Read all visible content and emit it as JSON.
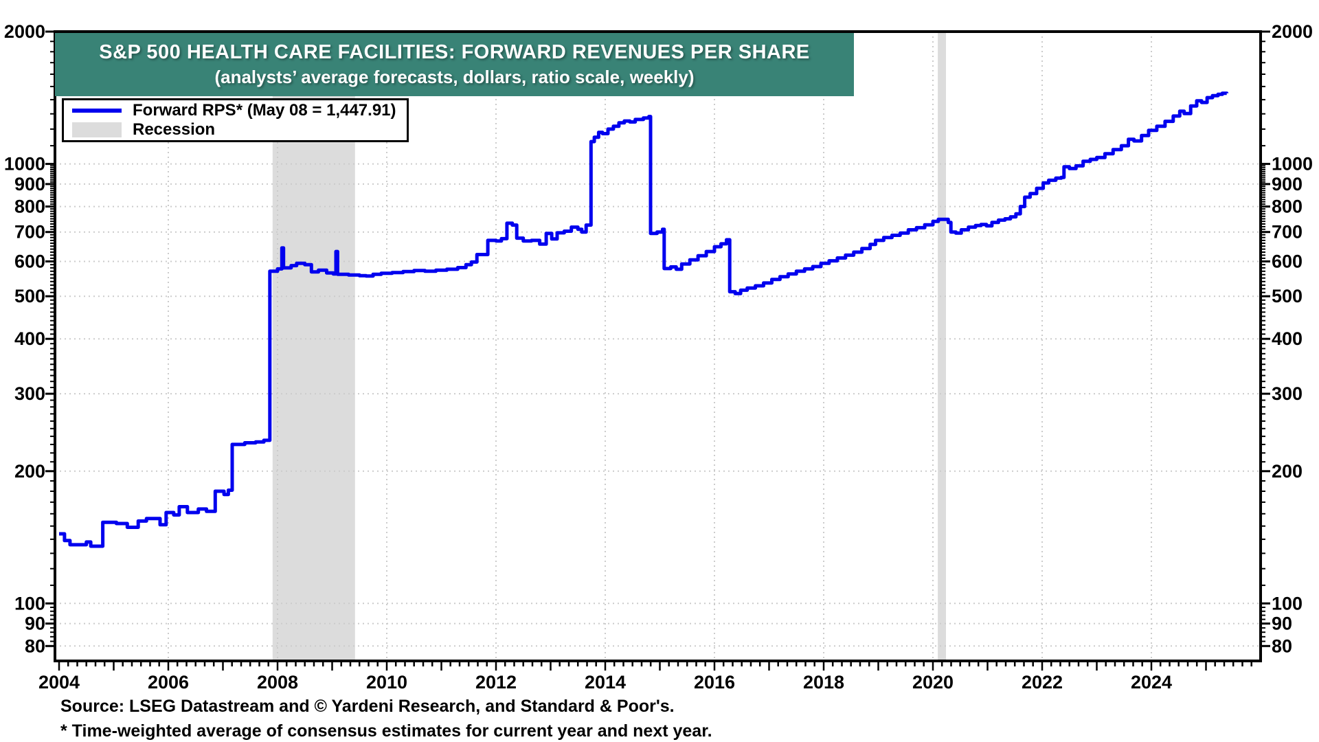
{
  "banner": {
    "title": "S&P 500 HEALTH CARE FACILITIES: FORWARD REVENUES PER SHARE",
    "subtitle": "(analysts’ average forecasts, dollars, ratio scale, weekly)",
    "bg_color": "#398376",
    "text_color": "#FFFFFF"
  },
  "legend": {
    "items": [
      {
        "label": "Forward RPS* (May 08 = 1,447.91)",
        "swatch": "line",
        "color": "#0000EE"
      },
      {
        "label": "Recession",
        "swatch": "box",
        "color": "#DCDCDC"
      }
    ]
  },
  "footer": {
    "source": "Source: LSEG Datastream and © Yardeni Research, and Standard & Poor's.",
    "footnote": "* Time-weighted average of consensus estimates for current year and next year."
  },
  "colors": {
    "line": "#0000EE",
    "recession_band": "#DCDCDC",
    "gridline": "#CBCBCB",
    "axis": "#000000",
    "banner_bg": "#398376"
  },
  "chart_data": {
    "type": "line",
    "title": "S&P 500 HEALTH CARE FACILITIES: FORWARD REVENUES PER SHARE",
    "subtitle": "(analysts’ average forecasts, dollars, ratio scale, weekly)",
    "y_scale": "log",
    "x_unit": "year (weekly data)",
    "x_domain": [
      2003.925,
      2026.0
    ],
    "y_domain": [
      74,
      2000
    ],
    "x_labeled_ticks": [
      2004,
      2006,
      2008,
      2010,
      2012,
      2014,
      2016,
      2018,
      2020,
      2022,
      2024
    ],
    "x_year_ticks": [
      2004,
      2005,
      2006,
      2007,
      2008,
      2009,
      2010,
      2011,
      2012,
      2013,
      2014,
      2015,
      2016,
      2017,
      2018,
      2019,
      2020,
      2021,
      2022,
      2023,
      2024,
      2025
    ],
    "x_minor_ticks_per_year": 6,
    "y_ticks": [
      80,
      90,
      100,
      200,
      300,
      400,
      500,
      600,
      700,
      800,
      900,
      1000,
      2000
    ],
    "gridline_years": [
      2006,
      2008,
      2010,
      2012,
      2014,
      2016,
      2018,
      2020,
      2022,
      2024
    ],
    "gridline_values": [
      80,
      90,
      100,
      200,
      300,
      400,
      500,
      600,
      700,
      800,
      900,
      1000
    ],
    "legend_position": "top-left",
    "recession_bands": [
      [
        2007.91,
        2009.42
      ],
      [
        2020.09,
        2020.24
      ]
    ],
    "series": [
      {
        "name": "Forward RPS* (May 08 = 1,447.91)",
        "color": "#0000EE",
        "latest_label": "May 08 = 1,447.91",
        "data": [
          [
            2004.0,
            144
          ],
          [
            2004.1,
            139
          ],
          [
            2004.2,
            136
          ],
          [
            2004.5,
            138
          ],
          [
            2004.58,
            135
          ],
          [
            2004.8,
            153
          ],
          [
            2005.05,
            152
          ],
          [
            2005.25,
            149
          ],
          [
            2005.45,
            154
          ],
          [
            2005.6,
            156
          ],
          [
            2005.85,
            151
          ],
          [
            2005.96,
            161
          ],
          [
            2006.1,
            159
          ],
          [
            2006.2,
            166
          ],
          [
            2006.35,
            161
          ],
          [
            2006.55,
            164
          ],
          [
            2006.7,
            162
          ],
          [
            2006.86,
            180
          ],
          [
            2007.02,
            177
          ],
          [
            2007.1,
            181
          ],
          [
            2007.17,
            230
          ],
          [
            2007.4,
            232
          ],
          [
            2007.6,
            233
          ],
          [
            2007.75,
            235
          ],
          [
            2007.86,
            570
          ],
          [
            2008.0,
            577
          ],
          [
            2008.08,
            644
          ],
          [
            2008.11,
            580
          ],
          [
            2008.25,
            587
          ],
          [
            2008.35,
            594
          ],
          [
            2008.5,
            590
          ],
          [
            2008.62,
            568
          ],
          [
            2008.75,
            573
          ],
          [
            2008.9,
            565
          ],
          [
            2009.02,
            562
          ],
          [
            2009.07,
            632
          ],
          [
            2009.1,
            561
          ],
          [
            2009.3,
            559
          ],
          [
            2009.5,
            557
          ],
          [
            2009.62,
            556
          ],
          [
            2009.75,
            561
          ],
          [
            2009.9,
            564
          ],
          [
            2010.1,
            566
          ],
          [
            2010.3,
            569
          ],
          [
            2010.5,
            572
          ],
          [
            2010.7,
            570
          ],
          [
            2010.9,
            573
          ],
          [
            2011.1,
            576
          ],
          [
            2011.3,
            581
          ],
          [
            2011.45,
            590
          ],
          [
            2011.55,
            598
          ],
          [
            2011.65,
            622
          ],
          [
            2011.85,
            670
          ],
          [
            2012.0,
            668
          ],
          [
            2012.1,
            676
          ],
          [
            2012.2,
            733
          ],
          [
            2012.3,
            726
          ],
          [
            2012.38,
            678
          ],
          [
            2012.5,
            668
          ],
          [
            2012.65,
            670
          ],
          [
            2012.8,
            657
          ],
          [
            2012.92,
            695
          ],
          [
            2013.02,
            675
          ],
          [
            2013.12,
            697
          ],
          [
            2013.25,
            703
          ],
          [
            2013.38,
            718
          ],
          [
            2013.5,
            710
          ],
          [
            2013.57,
            700
          ],
          [
            2013.65,
            726
          ],
          [
            2013.74,
            1124
          ],
          [
            2013.8,
            1150
          ],
          [
            2013.88,
            1180
          ],
          [
            2013.95,
            1172
          ],
          [
            2014.05,
            1200
          ],
          [
            2014.15,
            1218
          ],
          [
            2014.25,
            1240
          ],
          [
            2014.35,
            1252
          ],
          [
            2014.45,
            1246
          ],
          [
            2014.55,
            1262
          ],
          [
            2014.7,
            1272
          ],
          [
            2014.8,
            1282
          ],
          [
            2014.83,
            695
          ],
          [
            2014.95,
            700
          ],
          [
            2015.05,
            710
          ],
          [
            2015.08,
            578
          ],
          [
            2015.2,
            583
          ],
          [
            2015.3,
            576
          ],
          [
            2015.4,
            592
          ],
          [
            2015.55,
            605
          ],
          [
            2015.7,
            618
          ],
          [
            2015.85,
            632
          ],
          [
            2016.0,
            648
          ],
          [
            2016.12,
            658
          ],
          [
            2016.22,
            672
          ],
          [
            2016.28,
            512
          ],
          [
            2016.38,
            507
          ],
          [
            2016.48,
            516
          ],
          [
            2016.6,
            522
          ],
          [
            2016.75,
            528
          ],
          [
            2016.9,
            536
          ],
          [
            2017.05,
            546
          ],
          [
            2017.2,
            554
          ],
          [
            2017.35,
            562
          ],
          [
            2017.5,
            570
          ],
          [
            2017.65,
            577
          ],
          [
            2017.8,
            584
          ],
          [
            2017.95,
            594
          ],
          [
            2018.1,
            602
          ],
          [
            2018.25,
            611
          ],
          [
            2018.4,
            620
          ],
          [
            2018.55,
            630
          ],
          [
            2018.7,
            642
          ],
          [
            2018.85,
            656
          ],
          [
            2018.95,
            670
          ],
          [
            2019.1,
            680
          ],
          [
            2019.25,
            688
          ],
          [
            2019.4,
            696
          ],
          [
            2019.55,
            708
          ],
          [
            2019.7,
            716
          ],
          [
            2019.85,
            727
          ],
          [
            2020.0,
            740
          ],
          [
            2020.1,
            748
          ],
          [
            2020.28,
            736
          ],
          [
            2020.33,
            700
          ],
          [
            2020.42,
            696
          ],
          [
            2020.52,
            708
          ],
          [
            2020.65,
            718
          ],
          [
            2020.78,
            724
          ],
          [
            2020.88,
            728
          ],
          [
            2020.98,
            723
          ],
          [
            2021.08,
            736
          ],
          [
            2021.2,
            745
          ],
          [
            2021.32,
            750
          ],
          [
            2021.42,
            758
          ],
          [
            2021.52,
            770
          ],
          [
            2021.6,
            800
          ],
          [
            2021.68,
            840
          ],
          [
            2021.78,
            856
          ],
          [
            2021.9,
            880
          ],
          [
            2022.02,
            905
          ],
          [
            2022.12,
            918
          ],
          [
            2022.25,
            928
          ],
          [
            2022.35,
            932
          ],
          [
            2022.4,
            985
          ],
          [
            2022.5,
            976
          ],
          [
            2022.62,
            990
          ],
          [
            2022.75,
            1014
          ],
          [
            2022.88,
            1024
          ],
          [
            2023.0,
            1034
          ],
          [
            2023.15,
            1055
          ],
          [
            2023.3,
            1078
          ],
          [
            2023.45,
            1100
          ],
          [
            2023.58,
            1138
          ],
          [
            2023.68,
            1128
          ],
          [
            2023.82,
            1160
          ],
          [
            2023.95,
            1192
          ],
          [
            2024.1,
            1218
          ],
          [
            2024.25,
            1250
          ],
          [
            2024.4,
            1285
          ],
          [
            2024.52,
            1318
          ],
          [
            2024.6,
            1302
          ],
          [
            2024.72,
            1355
          ],
          [
            2024.83,
            1392
          ],
          [
            2024.92,
            1380
          ],
          [
            2025.02,
            1415
          ],
          [
            2025.12,
            1430
          ],
          [
            2025.22,
            1440
          ],
          [
            2025.3,
            1448
          ],
          [
            2025.38,
            1447.91
          ]
        ]
      }
    ]
  }
}
